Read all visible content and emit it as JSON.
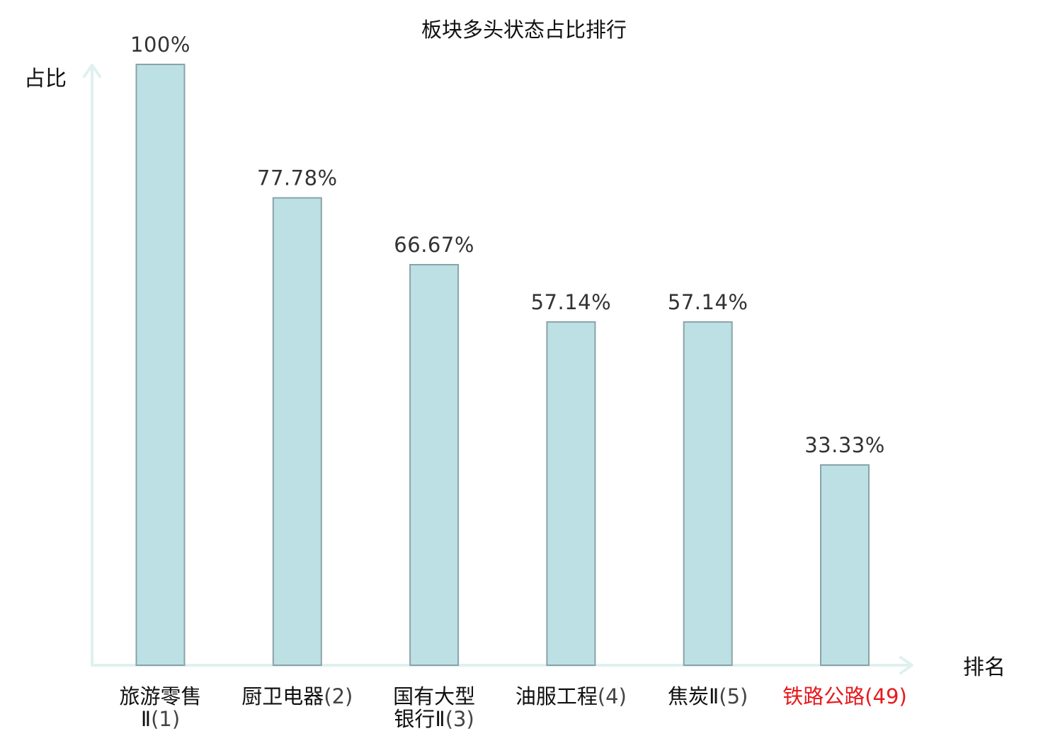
{
  "chart_data": {
    "type": "bar",
    "title": "板块多头状态占比排行",
    "ylabel": "占比",
    "xlabel": "排名",
    "ylim": [
      0,
      100
    ],
    "unit": "%",
    "grid": false,
    "legend": "none",
    "categories": [
      "旅游零售Ⅱ(1)",
      "厨卫电器(2)",
      "国有大型银行Ⅱ(3)",
      "油服工程(4)",
      "焦炭Ⅱ(5)",
      "铁路公路(49)"
    ],
    "category_lines": [
      [
        {
          "name": "旅游零售"
        },
        {
          "name": "Ⅱ",
          "rank": "(1)"
        }
      ],
      [
        {
          "name": "厨卫电器",
          "rank": "(2)"
        }
      ],
      [
        {
          "name": "国有大型"
        },
        {
          "name": "银行Ⅱ",
          "rank": "(3)"
        }
      ],
      [
        {
          "name": "油服工程",
          "rank": "(4)"
        }
      ],
      [
        {
          "name": "焦炭Ⅱ",
          "rank": "(5)"
        }
      ],
      [
        {
          "name": "铁路公路",
          "rank": "(49)"
        }
      ]
    ],
    "values": [
      100,
      77.78,
      66.67,
      57.14,
      57.14,
      33.33
    ],
    "value_labels": [
      "100%",
      "77.78%",
      "66.67%",
      "57.14%",
      "57.14%",
      "33.33%"
    ],
    "highlighted_category_index": 5,
    "colors": {
      "bar_fill": "#bce0e3",
      "bar_stroke": "#8aa3a8",
      "axis": "#dff1ee",
      "highlight_text": "#e8191c"
    }
  }
}
